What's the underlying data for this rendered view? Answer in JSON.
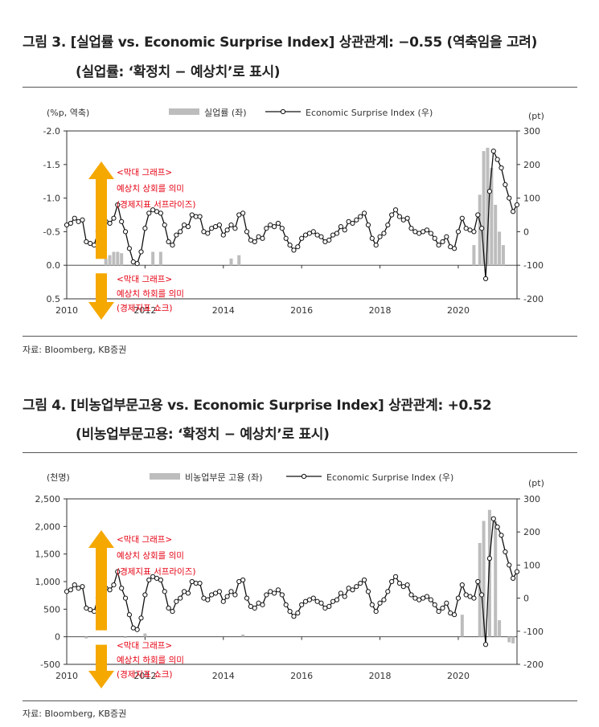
{
  "figures": [
    {
      "title_line1": "그림 3. [실업률 vs. Economic Surprise Index] 상관관계: −0.55 (역축임을 고려)",
      "title_line2": "(실업률: ‘확정치 − 예상치’로 표시)",
      "source": "자료: Bloomberg, KB증권"
    },
    {
      "title_line1": "그림 4. [비농업부문고용 vs. Economic Surprise Index] 상관관계: +0.52",
      "title_line2": "(비농업부문고용: ‘확정치 − 예상치’로 표시)",
      "source": "자료: Bloomberg, KB증권"
    }
  ],
  "colors": {
    "bar": "#bdbdbd",
    "line": "#111111",
    "arrow": "#f5a800",
    "annotation": "#e60012"
  },
  "chart_data": [
    {
      "type": "bar+line",
      "left_axis_label": "(%p, 역축)",
      "right_axis_label": "(pt)",
      "left_ticks": [
        "-2.0",
        "-1.5",
        "-1.0",
        "-0.5",
        "0.0",
        "0.5"
      ],
      "left_range": [
        -2.0,
        0.5
      ],
      "left_inverted": true,
      "right_ticks": [
        "300",
        "200",
        "100",
        "0",
        "-100",
        "-200"
      ],
      "right_range": [
        -200,
        300
      ],
      "x_ticks": [
        "2010",
        "2012",
        "2014",
        "2016",
        "2018",
        "2020"
      ],
      "x_range": [
        2010,
        2021.5
      ],
      "legend_bar": "실업률 (좌)",
      "legend_line": "Economic Surprise Index (우)",
      "annotation_up": [
        "<막대 그래프>",
        "예상치 상회를 의미",
        "(경제지표 서프라이즈)"
      ],
      "annotation_down": [
        "<막대 그래프>",
        "예상치 하회를 의미",
        "(경제지표 쇼크)"
      ],
      "line_points": [
        [
          2010.0,
          20
        ],
        [
          2010.1,
          25
        ],
        [
          2010.2,
          40
        ],
        [
          2010.3,
          30
        ],
        [
          2010.4,
          35
        ],
        [
          2010.5,
          -30
        ],
        [
          2010.6,
          -35
        ],
        [
          2010.7,
          -40
        ],
        [
          2010.8,
          0
        ],
        [
          2010.9,
          10
        ],
        [
          2011.0,
          30
        ],
        [
          2011.1,
          25
        ],
        [
          2011.2,
          40
        ],
        [
          2011.3,
          80
        ],
        [
          2011.4,
          30
        ],
        [
          2011.5,
          0
        ],
        [
          2011.6,
          -50
        ],
        [
          2011.7,
          -90
        ],
        [
          2011.8,
          -95
        ],
        [
          2011.9,
          -60
        ],
        [
          2012.0,
          10
        ],
        [
          2012.1,
          55
        ],
        [
          2012.2,
          65
        ],
        [
          2012.3,
          60
        ],
        [
          2012.4,
          55
        ],
        [
          2012.5,
          20
        ],
        [
          2012.6,
          -30
        ],
        [
          2012.7,
          -40
        ],
        [
          2012.8,
          -10
        ],
        [
          2012.9,
          0
        ],
        [
          2013.0,
          20
        ],
        [
          2013.1,
          15
        ],
        [
          2013.2,
          50
        ],
        [
          2013.3,
          45
        ],
        [
          2013.4,
          45
        ],
        [
          2013.5,
          0
        ],
        [
          2013.6,
          -5
        ],
        [
          2013.7,
          10
        ],
        [
          2013.8,
          15
        ],
        [
          2013.9,
          20
        ],
        [
          2014.0,
          -10
        ],
        [
          2014.1,
          5
        ],
        [
          2014.2,
          20
        ],
        [
          2014.3,
          10
        ],
        [
          2014.4,
          50
        ],
        [
          2014.5,
          55
        ],
        [
          2014.6,
          0
        ],
        [
          2014.7,
          -25
        ],
        [
          2014.8,
          -30
        ],
        [
          2014.9,
          -15
        ],
        [
          2015.0,
          -20
        ],
        [
          2015.1,
          10
        ],
        [
          2015.2,
          20
        ],
        [
          2015.3,
          15
        ],
        [
          2015.4,
          25
        ],
        [
          2015.5,
          10
        ],
        [
          2015.6,
          -20
        ],
        [
          2015.7,
          -40
        ],
        [
          2015.8,
          -55
        ],
        [
          2015.9,
          -45
        ],
        [
          2016.0,
          -20
        ],
        [
          2016.1,
          -10
        ],
        [
          2016.2,
          -5
        ],
        [
          2016.3,
          0
        ],
        [
          2016.4,
          -10
        ],
        [
          2016.5,
          -15
        ],
        [
          2016.6,
          -30
        ],
        [
          2016.7,
          -25
        ],
        [
          2016.8,
          -10
        ],
        [
          2016.9,
          -5
        ],
        [
          2017.0,
          15
        ],
        [
          2017.1,
          5
        ],
        [
          2017.2,
          30
        ],
        [
          2017.3,
          25
        ],
        [
          2017.4,
          35
        ],
        [
          2017.5,
          45
        ],
        [
          2017.6,
          55
        ],
        [
          2017.7,
          20
        ],
        [
          2017.8,
          -20
        ],
        [
          2017.9,
          -40
        ],
        [
          2018.0,
          -15
        ],
        [
          2018.1,
          -5
        ],
        [
          2018.2,
          20
        ],
        [
          2018.3,
          50
        ],
        [
          2018.4,
          65
        ],
        [
          2018.5,
          45
        ],
        [
          2018.6,
          35
        ],
        [
          2018.7,
          40
        ],
        [
          2018.8,
          10
        ],
        [
          2018.9,
          0
        ],
        [
          2019.0,
          -5
        ],
        [
          2019.1,
          0
        ],
        [
          2019.2,
          5
        ],
        [
          2019.3,
          -5
        ],
        [
          2019.4,
          -20
        ],
        [
          2019.5,
          -40
        ],
        [
          2019.6,
          -30
        ],
        [
          2019.7,
          -15
        ],
        [
          2019.8,
          -45
        ],
        [
          2019.9,
          -50
        ],
        [
          2020.0,
          0
        ],
        [
          2020.1,
          40
        ],
        [
          2020.2,
          10
        ],
        [
          2020.3,
          5
        ],
        [
          2020.4,
          0
        ],
        [
          2020.5,
          50
        ],
        [
          2020.6,
          10
        ],
        [
          2020.7,
          -140
        ],
        [
          2020.8,
          120
        ],
        [
          2020.9,
          240
        ],
        [
          2021.0,
          215
        ],
        [
          2021.1,
          190
        ],
        [
          2021.2,
          140
        ],
        [
          2021.3,
          100
        ],
        [
          2021.4,
          60
        ],
        [
          2021.5,
          80
        ],
        [
          2021.6,
          50
        ],
        [
          2021.7,
          40
        ],
        [
          2021.8,
          20
        ],
        [
          2021.9,
          5
        ],
        [
          2022.0,
          -20
        ]
      ],
      "bars": [
        [
          2011.0,
          -0.1
        ],
        [
          2011.1,
          -0.15
        ],
        [
          2011.2,
          -0.2
        ],
        [
          2011.3,
          -0.2
        ],
        [
          2011.4,
          -0.18
        ],
        [
          2012.2,
          -0.2
        ],
        [
          2012.4,
          -0.2
        ],
        [
          2014.2,
          -0.1
        ],
        [
          2014.4,
          -0.15
        ],
        [
          2020.4,
          -0.3
        ],
        [
          2020.55,
          -1.05
        ],
        [
          2020.65,
          -1.7
        ],
        [
          2020.75,
          -1.75
        ],
        [
          2020.85,
          -1.45
        ],
        [
          2020.95,
          -0.9
        ],
        [
          2021.05,
          -0.5
        ],
        [
          2021.15,
          -0.3
        ]
      ]
    },
    {
      "type": "bar+line",
      "left_axis_label": "(천명)",
      "right_axis_label": "(pt)",
      "left_ticks": [
        "2,500",
        "2,000",
        "1,500",
        "1,000",
        "500",
        "0",
        "-500"
      ],
      "left_range": [
        -500,
        2500
      ],
      "left_inverted": false,
      "right_ticks": [
        "300",
        "200",
        "100",
        "0",
        "-100",
        "-200"
      ],
      "right_range": [
        -200,
        300
      ],
      "x_ticks": [
        "2010",
        "2012",
        "2014",
        "2016",
        "2018",
        "2020"
      ],
      "x_range": [
        2010,
        2021.5
      ],
      "legend_bar": "비농업부문 고용 (좌)",
      "legend_line": "Economic Surprise Index (우)",
      "annotation_up": [
        "<막대 그래프>",
        "예상치 상회를 의미",
        "(경제지표 서프라이즈)"
      ],
      "annotation_down": [
        "<막대 그래프>",
        "예상치 하회를 의미",
        "(경제지표 쇼크)"
      ],
      "line_points": [
        [
          2010.0,
          20
        ],
        [
          2010.1,
          25
        ],
        [
          2010.2,
          40
        ],
        [
          2010.3,
          30
        ],
        [
          2010.4,
          35
        ],
        [
          2010.5,
          -30
        ],
        [
          2010.6,
          -35
        ],
        [
          2010.7,
          -40
        ],
        [
          2010.8,
          0
        ],
        [
          2010.9,
          10
        ],
        [
          2011.0,
          30
        ],
        [
          2011.1,
          25
        ],
        [
          2011.2,
          40
        ],
        [
          2011.3,
          80
        ],
        [
          2011.4,
          30
        ],
        [
          2011.5,
          0
        ],
        [
          2011.6,
          -50
        ],
        [
          2011.7,
          -90
        ],
        [
          2011.8,
          -95
        ],
        [
          2011.9,
          -60
        ],
        [
          2012.0,
          10
        ],
        [
          2012.1,
          55
        ],
        [
          2012.2,
          65
        ],
        [
          2012.3,
          60
        ],
        [
          2012.4,
          55
        ],
        [
          2012.5,
          20
        ],
        [
          2012.6,
          -30
        ],
        [
          2012.7,
          -40
        ],
        [
          2012.8,
          -10
        ],
        [
          2012.9,
          0
        ],
        [
          2013.0,
          20
        ],
        [
          2013.1,
          15
        ],
        [
          2013.2,
          50
        ],
        [
          2013.3,
          45
        ],
        [
          2013.4,
          45
        ],
        [
          2013.5,
          0
        ],
        [
          2013.6,
          -5
        ],
        [
          2013.7,
          10
        ],
        [
          2013.8,
          15
        ],
        [
          2013.9,
          20
        ],
        [
          2014.0,
          -10
        ],
        [
          2014.1,
          5
        ],
        [
          2014.2,
          20
        ],
        [
          2014.3,
          10
        ],
        [
          2014.4,
          50
        ],
        [
          2014.5,
          55
        ],
        [
          2014.6,
          0
        ],
        [
          2014.7,
          -25
        ],
        [
          2014.8,
          -30
        ],
        [
          2014.9,
          -15
        ],
        [
          2015.0,
          -20
        ],
        [
          2015.1,
          10
        ],
        [
          2015.2,
          20
        ],
        [
          2015.3,
          15
        ],
        [
          2015.4,
          25
        ],
        [
          2015.5,
          10
        ],
        [
          2015.6,
          -20
        ],
        [
          2015.7,
          -40
        ],
        [
          2015.8,
          -55
        ],
        [
          2015.9,
          -45
        ],
        [
          2016.0,
          -20
        ],
        [
          2016.1,
          -10
        ],
        [
          2016.2,
          -5
        ],
        [
          2016.3,
          0
        ],
        [
          2016.4,
          -10
        ],
        [
          2016.5,
          -15
        ],
        [
          2016.6,
          -30
        ],
        [
          2016.7,
          -25
        ],
        [
          2016.8,
          -10
        ],
        [
          2016.9,
          -5
        ],
        [
          2017.0,
          15
        ],
        [
          2017.1,
          5
        ],
        [
          2017.2,
          30
        ],
        [
          2017.3,
          25
        ],
        [
          2017.4,
          35
        ],
        [
          2017.5,
          45
        ],
        [
          2017.6,
          55
        ],
        [
          2017.7,
          20
        ],
        [
          2017.8,
          -20
        ],
        [
          2017.9,
          -40
        ],
        [
          2018.0,
          -15
        ],
        [
          2018.1,
          -5
        ],
        [
          2018.2,
          20
        ],
        [
          2018.3,
          50
        ],
        [
          2018.4,
          65
        ],
        [
          2018.5,
          45
        ],
        [
          2018.6,
          35
        ],
        [
          2018.7,
          40
        ],
        [
          2018.8,
          10
        ],
        [
          2018.9,
          0
        ],
        [
          2019.0,
          -5
        ],
        [
          2019.1,
          0
        ],
        [
          2019.2,
          5
        ],
        [
          2019.3,
          -5
        ],
        [
          2019.4,
          -20
        ],
        [
          2019.5,
          -40
        ],
        [
          2019.6,
          -30
        ],
        [
          2019.7,
          -15
        ],
        [
          2019.8,
          -45
        ],
        [
          2019.9,
          -50
        ],
        [
          2020.0,
          0
        ],
        [
          2020.1,
          40
        ],
        [
          2020.2,
          10
        ],
        [
          2020.3,
          5
        ],
        [
          2020.4,
          0
        ],
        [
          2020.5,
          50
        ],
        [
          2020.6,
          10
        ],
        [
          2020.7,
          -140
        ],
        [
          2020.8,
          120
        ],
        [
          2020.9,
          240
        ],
        [
          2021.0,
          215
        ],
        [
          2021.1,
          190
        ],
        [
          2021.2,
          140
        ],
        [
          2021.3,
          100
        ],
        [
          2021.4,
          60
        ],
        [
          2021.5,
          80
        ],
        [
          2021.6,
          50
        ],
        [
          2021.7,
          40
        ],
        [
          2021.8,
          20
        ],
        [
          2021.9,
          5
        ],
        [
          2022.0,
          -20
        ]
      ],
      "bars": [
        [
          2010.5,
          -30
        ],
        [
          2011.5,
          -20
        ],
        [
          2012.0,
          60
        ],
        [
          2014.5,
          40
        ],
        [
          2020.1,
          400
        ],
        [
          2020.55,
          1700
        ],
        [
          2020.65,
          2100
        ],
        [
          2020.8,
          2300
        ],
        [
          2020.95,
          2100
        ],
        [
          2021.05,
          300
        ],
        [
          2021.3,
          -100
        ],
        [
          2021.4,
          -120
        ]
      ]
    }
  ]
}
